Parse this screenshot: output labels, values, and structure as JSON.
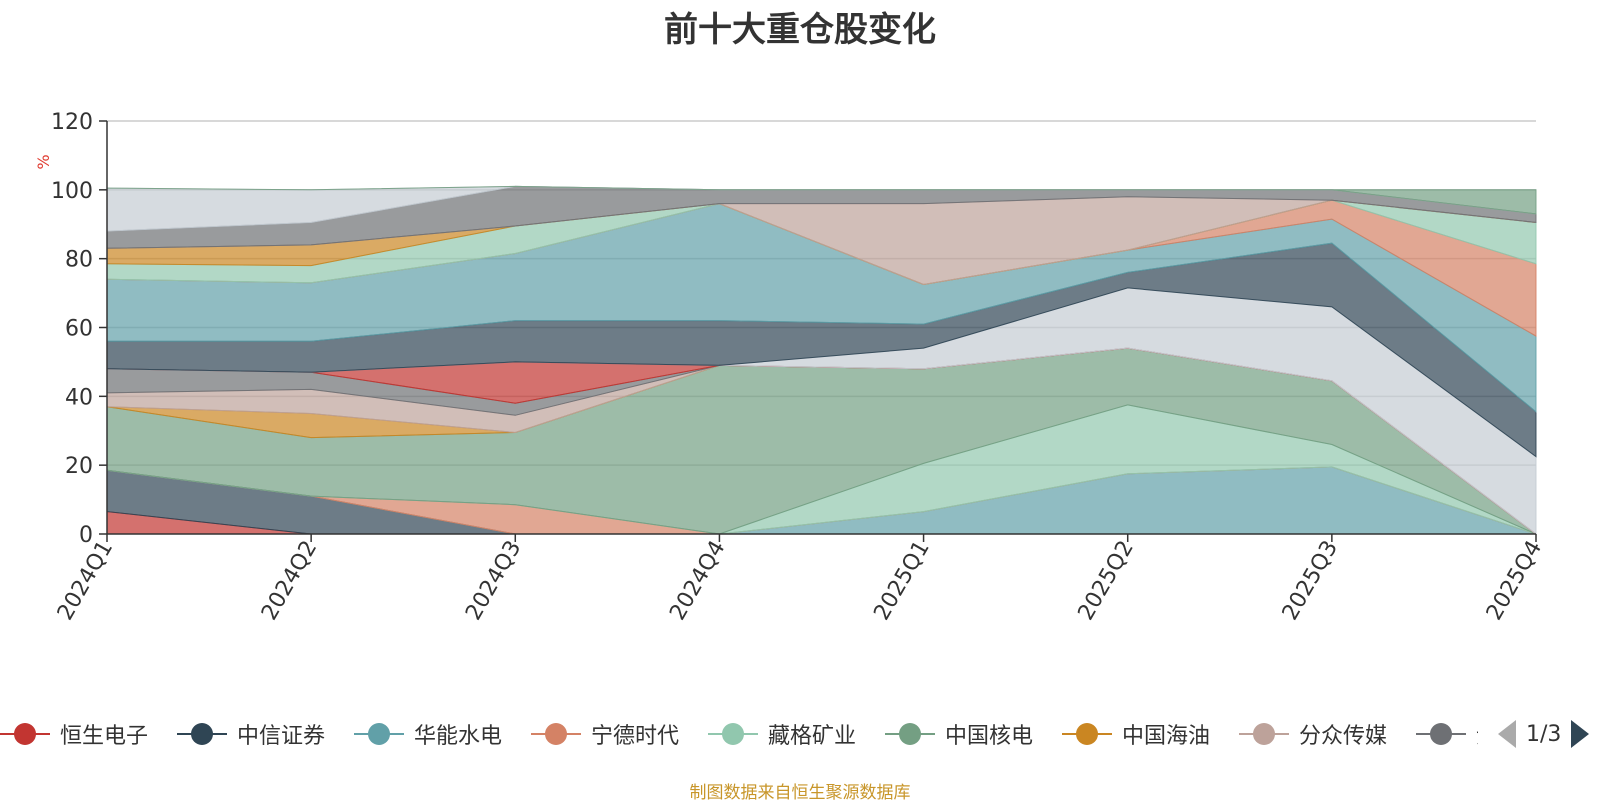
{
  "chart_data": {
    "type": "area",
    "stacked": true,
    "title": "前十大重仓股变化",
    "ylabel": "%",
    "ylim": [
      0,
      120
    ],
    "yticks": [
      0,
      20,
      40,
      60,
      80,
      100,
      120
    ],
    "grid": true,
    "categories": [
      "2024Q1",
      "2024Q2",
      "2024Q3",
      "2024Q4",
      "2025Q1",
      "2025Q2",
      "2025Q3",
      "2025Q4"
    ],
    "series": [
      {
        "name": "恒生电子",
        "color": "#c23531",
        "values": [
          6.5,
          0,
          0,
          0,
          0,
          0,
          0,
          0
        ]
      },
      {
        "name": "中信证券",
        "color": "#2f4554",
        "values": [
          12.0,
          11.0,
          0,
          0,
          0,
          0,
          0,
          0
        ]
      },
      {
        "name": "华能水电",
        "color": "#61a0a8",
        "values": [
          0,
          0,
          0,
          0,
          6.5,
          17.5,
          19.5,
          0
        ]
      },
      {
        "name": "宁德时代",
        "color": "#d48265",
        "values": [
          0,
          0,
          8.5,
          0,
          0,
          0,
          0,
          0
        ]
      },
      {
        "name": "藏格矿业",
        "color": "#91c7ae",
        "values": [
          0,
          0,
          0,
          0,
          14.0,
          20.0,
          6.5,
          0
        ]
      },
      {
        "name": "中国核电",
        "color": "#749f83",
        "values": [
          18.5,
          17.0,
          21.0,
          49.0,
          27.5,
          16.5,
          18.5,
          0
        ]
      },
      {
        "name": "中国海油",
        "color": "#ca8622",
        "values": [
          0,
          7.0,
          0,
          0,
          0,
          0,
          0,
          0
        ]
      },
      {
        "name": "分众传媒",
        "color": "#bda29a",
        "values": [
          4.0,
          7.0,
          5.0,
          0,
          0,
          0,
          0,
          0
        ]
      },
      {
        "name": "紫金矿业",
        "color": "#6e7074",
        "values": [
          7.0,
          5.0,
          3.5,
          0,
          0,
          0,
          0,
          0
        ]
      },
      {
        "name": "",
        "color": "#c23531",
        "values": [
          0,
          0,
          12.0,
          0,
          0,
          0,
          0,
          0
        ]
      },
      {
        "name": "",
        "color": "#c4ccd3",
        "values": [
          0,
          0,
          0,
          0,
          6.0,
          17.5,
          21.5,
          22.5
        ]
      },
      {
        "name": "",
        "color": "#2f4554",
        "values": [
          8.0,
          9.0,
          12.0,
          13.0,
          7.0,
          4.5,
          18.5,
          13.0
        ]
      },
      {
        "name": "",
        "color": "#61a0a8",
        "values": [
          18.0,
          17.0,
          19.5,
          34.0,
          11.5,
          6.5,
          7.0,
          22.0
        ]
      },
      {
        "name": "",
        "color": "#d48265",
        "values": [
          0,
          0,
          0,
          0,
          0,
          0,
          5.5,
          21.0
        ]
      },
      {
        "name": "",
        "color": "#91c7ae",
        "values": [
          4.5,
          5.0,
          8.0,
          0,
          0,
          0,
          0,
          12.0
        ]
      },
      {
        "name": "",
        "color": "#ca8622",
        "values": [
          4.5,
          6.0,
          0,
          0,
          0,
          0,
          0,
          0
        ]
      },
      {
        "name": "",
        "color": "#bda29a",
        "values": [
          0,
          0,
          0,
          0,
          23.5,
          15.5,
          0,
          0
        ]
      },
      {
        "name": "",
        "color": "#6e7074",
        "values": [
          5.0,
          6.5,
          11.5,
          4.0,
          4.0,
          2.0,
          3.0,
          2.5
        ]
      },
      {
        "name": "",
        "color": "#c4ccd3",
        "values": [
          12.5,
          9.5,
          0,
          0,
          0,
          0,
          0,
          0
        ]
      },
      {
        "name": "",
        "color": "#749f83",
        "values": [
          0,
          0,
          0,
          0,
          0,
          0,
          0,
          7.0
        ]
      }
    ]
  },
  "legend": {
    "items": [
      {
        "name": "恒生电子",
        "color": "#c23531"
      },
      {
        "name": "中信证券",
        "color": "#2f4554"
      },
      {
        "name": "华能水电",
        "color": "#61a0a8"
      },
      {
        "name": "宁德时代",
        "color": "#d48265"
      },
      {
        "name": "藏格矿业",
        "color": "#91c7ae"
      },
      {
        "name": "中国核电",
        "color": "#749f83"
      },
      {
        "name": "中国海油",
        "color": "#ca8622"
      },
      {
        "name": "分众传媒",
        "color": "#bda29a"
      },
      {
        "name": "紫金矿业",
        "color": "#6e7074"
      }
    ],
    "page_text": "1/3"
  },
  "source_note": "制图数据来自恒生聚源数据库"
}
